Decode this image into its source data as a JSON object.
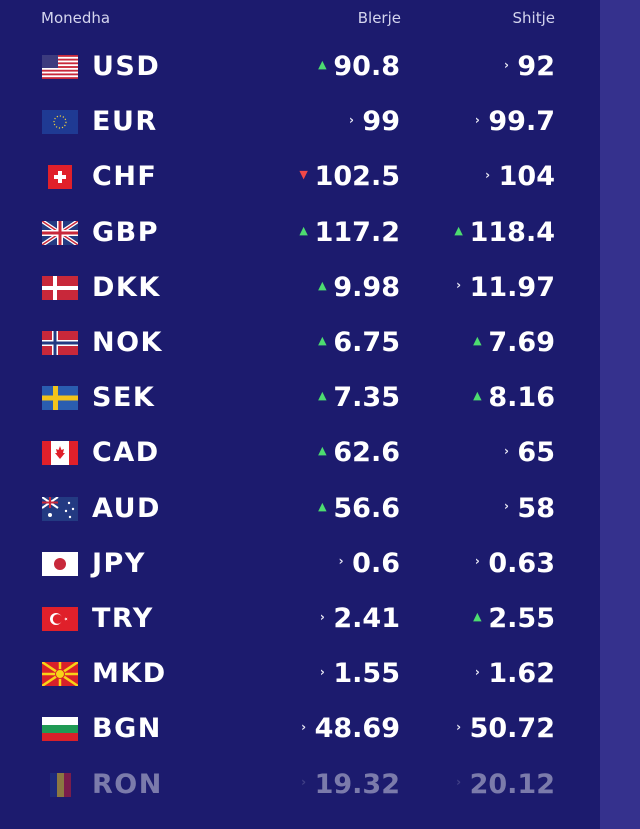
{
  "header": {
    "currency": "Monedha",
    "buy": "Blerje",
    "sell": "Shitje"
  },
  "colors": {
    "background": "#1c1b6e",
    "sidebar": "#35318d",
    "up": "#4ddc70",
    "down": "#f04848"
  },
  "rows": [
    {
      "code": "USD",
      "flag": "us-flag-icon",
      "buy": "90.8",
      "buy_dir": "up",
      "sell": "92",
      "sell_dir": "neutral"
    },
    {
      "code": "EUR",
      "flag": "eu-flag-icon",
      "buy": "99",
      "buy_dir": "neutral",
      "sell": "99.7",
      "sell_dir": "neutral"
    },
    {
      "code": "CHF",
      "flag": "ch-flag-icon",
      "buy": "102.5",
      "buy_dir": "down",
      "sell": "104",
      "sell_dir": "neutral"
    },
    {
      "code": "GBP",
      "flag": "gb-flag-icon",
      "buy": "117.2",
      "buy_dir": "up",
      "sell": "118.4",
      "sell_dir": "up"
    },
    {
      "code": "DKK",
      "flag": "dk-flag-icon",
      "buy": "9.98",
      "buy_dir": "up",
      "sell": "11.97",
      "sell_dir": "neutral"
    },
    {
      "code": "NOK",
      "flag": "no-flag-icon",
      "buy": "6.75",
      "buy_dir": "up",
      "sell": "7.69",
      "sell_dir": "up"
    },
    {
      "code": "SEK",
      "flag": "se-flag-icon",
      "buy": "7.35",
      "buy_dir": "up",
      "sell": "8.16",
      "sell_dir": "up"
    },
    {
      "code": "CAD",
      "flag": "ca-flag-icon",
      "buy": "62.6",
      "buy_dir": "up",
      "sell": "65",
      "sell_dir": "neutral"
    },
    {
      "code": "AUD",
      "flag": "au-flag-icon",
      "buy": "56.6",
      "buy_dir": "up",
      "sell": "58",
      "sell_dir": "neutral"
    },
    {
      "code": "JPY",
      "flag": "jp-flag-icon",
      "buy": "0.6",
      "buy_dir": "neutral",
      "sell": "0.63",
      "sell_dir": "neutral"
    },
    {
      "code": "TRY",
      "flag": "tr-flag-icon",
      "buy": "2.41",
      "buy_dir": "neutral",
      "sell": "2.55",
      "sell_dir": "up"
    },
    {
      "code": "MKD",
      "flag": "mk-flag-icon",
      "buy": "1.55",
      "buy_dir": "neutral",
      "sell": "1.62",
      "sell_dir": "neutral"
    },
    {
      "code": "BGN",
      "flag": "bg-flag-icon",
      "buy": "48.69",
      "buy_dir": "neutral",
      "sell": "50.72",
      "sell_dir": "neutral"
    },
    {
      "code": "RON",
      "flag": "ro-flag-icon",
      "buy": "19.32",
      "buy_dir": "neutral",
      "sell": "20.12",
      "sell_dir": "neutral"
    }
  ]
}
